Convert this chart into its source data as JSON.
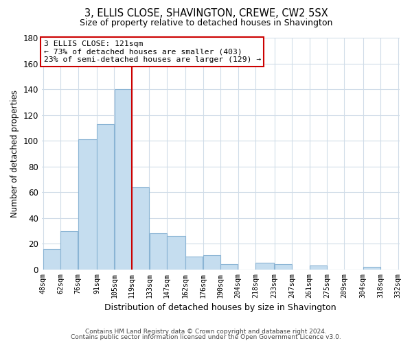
{
  "title": "3, ELLIS CLOSE, SHAVINGTON, CREWE, CW2 5SX",
  "subtitle": "Size of property relative to detached houses in Shavington",
  "xlabel": "Distribution of detached houses by size in Shavington",
  "ylabel": "Number of detached properties",
  "bar_color": "#c5ddef",
  "bar_edge_color": "#8ab4d4",
  "bar_left_edges": [
    48,
    62,
    76,
    91,
    105,
    119,
    133,
    147,
    162,
    176,
    190,
    204,
    218,
    233,
    247,
    261,
    275,
    289,
    304,
    318
  ],
  "bar_widths": [
    14,
    14,
    15,
    14,
    14,
    14,
    14,
    15,
    14,
    14,
    14,
    14,
    15,
    14,
    14,
    14,
    14,
    15,
    14,
    14
  ],
  "bar_heights": [
    16,
    30,
    101,
    113,
    140,
    64,
    28,
    26,
    10,
    11,
    4,
    0,
    5,
    4,
    0,
    3,
    0,
    0,
    2,
    0
  ],
  "tick_labels": [
    "48sqm",
    "62sqm",
    "76sqm",
    "91sqm",
    "105sqm",
    "119sqm",
    "133sqm",
    "147sqm",
    "162sqm",
    "176sqm",
    "190sqm",
    "204sqm",
    "218sqm",
    "233sqm",
    "247sqm",
    "261sqm",
    "275sqm",
    "289sqm",
    "304sqm",
    "318sqm",
    "332sqm"
  ],
  "ylim": [
    0,
    180
  ],
  "yticks": [
    0,
    20,
    40,
    60,
    80,
    100,
    120,
    140,
    160,
    180
  ],
  "vline_x": 119,
  "vline_color": "#cc0000",
  "annotation_line1": "3 ELLIS CLOSE: 121sqm",
  "annotation_line2": "← 73% of detached houses are smaller (403)",
  "annotation_line3": "23% of semi-detached houses are larger (129) →",
  "annotation_box_color": "#ffffff",
  "annotation_box_edge": "#cc0000",
  "footer_line1": "Contains HM Land Registry data © Crown copyright and database right 2024.",
  "footer_line2": "Contains public sector information licensed under the Open Government Licence v3.0.",
  "background_color": "#ffffff",
  "grid_color": "#d0dce8"
}
